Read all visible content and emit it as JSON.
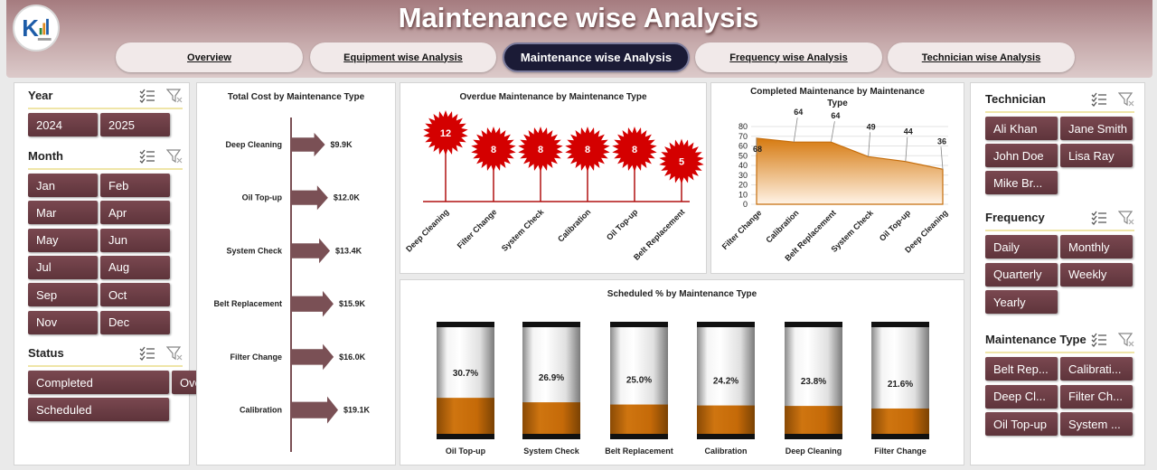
{
  "header": {
    "title": "Maintenance wise Analysis",
    "tabs": [
      {
        "label": "Overview",
        "active": false
      },
      {
        "label": "Equipment wise Analysis",
        "active": false
      },
      {
        "label": "Maintenance wise Analysis",
        "active": true
      },
      {
        "label": "Frequency  wise Analysis",
        "active": false
      },
      {
        "label": "Technician  wise Analysis",
        "active": false
      }
    ]
  },
  "left_slicers": {
    "year": {
      "title": "Year",
      "items": [
        "2024",
        "2025"
      ]
    },
    "month": {
      "title": "Month",
      "items": [
        "Jan",
        "Feb",
        "Mar",
        "Apr",
        "May",
        "Jun",
        "Jul",
        "Aug",
        "Sep",
        "Oct",
        "Nov",
        "Dec"
      ]
    },
    "status": {
      "title": "Status",
      "items": [
        "Completed",
        "Overdue",
        "Scheduled"
      ]
    }
  },
  "right_slicers": {
    "technician": {
      "title": "Technician",
      "items": [
        "Ali Khan",
        "Jane Smith",
        "John Doe",
        "Lisa Ray",
        "Mike Br..."
      ]
    },
    "frequency": {
      "title": "Frequency",
      "items": [
        "Daily",
        "Monthly",
        "Quarterly",
        "Weekly",
        "Yearly"
      ]
    },
    "maintenance_type": {
      "title": "Maintenance Type",
      "items": [
        "Belt Rep...",
        "Calibrati...",
        "Deep Cl...",
        "Filter Ch...",
        "Oil Top-up",
        "System ..."
      ]
    }
  },
  "icons": {
    "multi_select": "multi-select-icon",
    "clear_filter": "clear-filter-icon"
  },
  "colors": {
    "accent": "#6b3e45",
    "header": "#a57b7f",
    "arrow": "#7a5055",
    "burst": "#d40000",
    "area": "#e08a20",
    "tube_fill": "#c06a08"
  },
  "chart_data": [
    {
      "type": "bar",
      "title": "Total Cost by Maintenance Type",
      "categories": [
        "Deep Cleaning",
        "Oil Top-up",
        "System Check",
        "Belt Replacement",
        "Filter Change",
        "Calibration"
      ],
      "values": [
        9.9,
        12.0,
        13.4,
        15.9,
        16.0,
        19.1
      ],
      "labels": [
        "$9.9K",
        "$12.0K",
        "$13.4K",
        "$15.9K",
        "$16.0K",
        "$19.1K"
      ]
    },
    {
      "type": "bar",
      "title": "Overdue Maintenance by Maintenance Type",
      "categories": [
        "Deep Cleaning",
        "Filter Change",
        "System Check",
        "Calibration",
        "Oil Top-up",
        "Belt Replacement"
      ],
      "values": [
        12,
        8,
        8,
        8,
        8,
        5
      ]
    },
    {
      "type": "area",
      "title": "Completed Maintenance by Maintenance Type",
      "categories": [
        "Filter Change",
        "Calibration",
        "Belt Replacement",
        "System Check",
        "Oil Top-up",
        "Deep Cleaning"
      ],
      "values": [
        68,
        64,
        64,
        49,
        44,
        36
      ],
      "ylim": [
        0,
        80
      ],
      "yticks": [
        "0",
        "10",
        "20",
        "30",
        "40",
        "50",
        "60",
        "70",
        "80"
      ],
      "grid": true
    },
    {
      "type": "bar",
      "title": "Scheduled % by Maintenance Type",
      "categories": [
        "Oil Top-up",
        "System Check",
        "Belt Replacement",
        "Calibration",
        "Deep Cleaning",
        "Filter Change"
      ],
      "values": [
        30.7,
        26.9,
        25.0,
        24.2,
        23.8,
        21.6
      ],
      "labels": [
        "30.7%",
        "26.9%",
        "25.0%",
        "24.2%",
        "23.8%",
        "21.6%"
      ]
    }
  ]
}
